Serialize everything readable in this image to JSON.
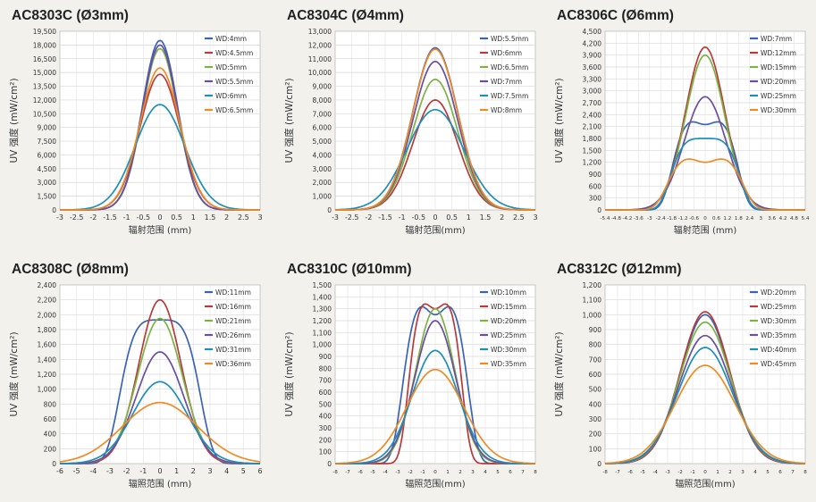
{
  "chart_data": [
    {
      "type": "line",
      "title": "AC8303C (Ø3mm)",
      "xlabel": "辐射范围 (mm)",
      "ylabel": "UV 强度 (mW/cm²)",
      "xlim": [
        -3,
        3
      ],
      "ylim": [
        0,
        19500
      ],
      "xticks": [
        "-3",
        "-2.5",
        "-2",
        "-1.5",
        "-1",
        "-0.5",
        "0",
        "0.5",
        "1",
        "1.5",
        "2",
        "2.5",
        "3"
      ],
      "yticks": [
        "0",
        "1,500",
        "3,000",
        "4,500",
        "6,000",
        "7,500",
        "9,000",
        "10,500",
        "12,000",
        "13,500",
        "15,000",
        "16,500",
        "18,000",
        "19,500"
      ],
      "grid": true,
      "legend": "top-right",
      "series": [
        {
          "name": "WD:4mm",
          "color": "#3a63b8",
          "peak": 18500,
          "width": 0.75,
          "shape": "bell"
        },
        {
          "name": "WD:4.5mm",
          "color": "#b83a3a",
          "peak": 14800,
          "width": 0.85,
          "shape": "bell"
        },
        {
          "name": "WD:5mm",
          "color": "#7cb342",
          "peak": 17600,
          "width": 0.75,
          "shape": "bell"
        },
        {
          "name": "WD:5.5mm",
          "color": "#6a4fa0",
          "peak": 18000,
          "width": 0.75,
          "shape": "bell"
        },
        {
          "name": "WD:6mm",
          "color": "#1e8fb8",
          "peak": 11500,
          "width": 1.05,
          "shape": "bell"
        },
        {
          "name": "WD:6.5mm",
          "color": "#f08a24",
          "peak": 15500,
          "width": 0.85,
          "shape": "bell"
        }
      ]
    },
    {
      "type": "line",
      "title": "AC8304C (Ø4mm)",
      "xlabel": "辐射范围(mm)",
      "ylabel": "UV 强度 (mW/cm²)",
      "xlim": [
        -3,
        3
      ],
      "ylim": [
        0,
        13000
      ],
      "xticks": [
        "-3",
        "-2.5",
        "-2",
        "-1.5",
        "-1",
        "-0.5",
        "0",
        "0.5",
        "1",
        "1.5",
        "2",
        "2.5",
        "3"
      ],
      "yticks": [
        "0",
        "1,000",
        "2,000",
        "3,000",
        "4,000",
        "5,000",
        "6,000",
        "7,000",
        "8,000",
        "9,000",
        "10,000",
        "11,000",
        "12,000",
        "13,000"
      ],
      "grid": true,
      "legend": "top-right",
      "series": [
        {
          "name": "WD:5.5mm",
          "color": "#3a63b8",
          "peak": 11800,
          "width": 0.95,
          "shape": "bell"
        },
        {
          "name": "WD:6mm",
          "color": "#b83a3a",
          "peak": 8000,
          "width": 0.95,
          "shape": "bell"
        },
        {
          "name": "WD:6.5mm",
          "color": "#7cb342",
          "peak": 9500,
          "width": 0.95,
          "shape": "bell"
        },
        {
          "name": "WD:7mm",
          "color": "#6a4fa0",
          "peak": 10800,
          "width": 0.95,
          "shape": "bell"
        },
        {
          "name": "WD:7.5mm",
          "color": "#1e8fb8",
          "peak": 7300,
          "width": 1.2,
          "shape": "bell"
        },
        {
          "name": "WD:8mm",
          "color": "#f08a24",
          "peak": 11700,
          "width": 0.95,
          "shape": "bell"
        }
      ]
    },
    {
      "type": "line",
      "title": "AC8306C (Ø6mm)",
      "xlabel": "辐射范围 (mm)",
      "ylabel": "UV 强度 (mW/cm²)",
      "xlim": [
        -5.4,
        5.4
      ],
      "ylim": [
        0,
        4500
      ],
      "xticks": [
        "-5.4",
        "-4.8",
        "-4.2",
        "-3.6",
        "-3",
        "-2.4",
        "-1.8",
        "-1.2",
        "-0.6",
        "0",
        "0.6",
        "1.2",
        "1.8",
        "2.4",
        "3",
        "3.6",
        "4.2",
        "4.8",
        "5.4"
      ],
      "yticks": [
        "0",
        "300",
        "600",
        "900",
        "1,200",
        "1,500",
        "1,800",
        "2,100",
        "2,400",
        "2,700",
        "3,000",
        "3,300",
        "3,600",
        "3,900",
        "4,200",
        "4,500"
      ],
      "grid": true,
      "legend": "top-right",
      "series": [
        {
          "name": "WD:7mm",
          "color": "#3a63b8",
          "peak": 2300,
          "dip": 2150,
          "width": 1.9,
          "shape": "flat"
        },
        {
          "name": "WD:12mm",
          "color": "#b83a3a",
          "peak": 4100,
          "width": 1.5,
          "shape": "bell"
        },
        {
          "name": "WD:15mm",
          "color": "#7cb342",
          "peak": 3900,
          "width": 1.5,
          "shape": "bell"
        },
        {
          "name": "WD:20mm",
          "color": "#6a4fa0",
          "peak": 2850,
          "width": 1.6,
          "shape": "bell"
        },
        {
          "name": "WD:25mm",
          "color": "#1e8fb8",
          "peak": 1800,
          "width": 2.0,
          "shape": "flat"
        },
        {
          "name": "WD:30mm",
          "color": "#f08a24",
          "peak": 1350,
          "dip": 1200,
          "width": 2.2,
          "shape": "flat"
        }
      ]
    },
    {
      "type": "line",
      "title": "AC8308C (Ø8mm)",
      "xlabel": "辐照范围 (mm)",
      "ylabel": "UV 强度 (mW/cm²)",
      "xlim": [
        -6,
        6
      ],
      "ylim": [
        0,
        2400
      ],
      "xticks": [
        "-6",
        "-5",
        "-4",
        "-3",
        "-2",
        "-1",
        "0",
        "1",
        "2",
        "3",
        "4",
        "5",
        "6"
      ],
      "yticks": [
        "0",
        "200",
        "400",
        "600",
        "800",
        "1,000",
        "1,200",
        "1,400",
        "1,600",
        "1,800",
        "2,000",
        "2,200",
        "2,400"
      ],
      "grid": true,
      "legend": "top-right",
      "series": [
        {
          "name": "WD:11mm",
          "color": "#3a63b8",
          "peak": 1930,
          "width": 2.6,
          "shape": "flat"
        },
        {
          "name": "WD:16mm",
          "color": "#b83a3a",
          "peak": 2200,
          "width": 1.8,
          "shape": "bell"
        },
        {
          "name": "WD:21mm",
          "color": "#7cb342",
          "peak": 1950,
          "width": 1.9,
          "shape": "bell"
        },
        {
          "name": "WD:26mm",
          "color": "#6a4fa0",
          "peak": 1500,
          "width": 2.0,
          "shape": "bell"
        },
        {
          "name": "WD:31mm",
          "color": "#1e8fb8",
          "peak": 1100,
          "width": 2.3,
          "shape": "bell"
        },
        {
          "name": "WD:36mm",
          "color": "#f08a24",
          "peak": 820,
          "width": 3.2,
          "shape": "bell"
        }
      ]
    },
    {
      "type": "line",
      "title": "AC8310C (Ø10mm)",
      "xlabel": "辐照范围(mm)",
      "ylabel": "UV 强度 (mW/cm²)",
      "xlim": [
        -8,
        8
      ],
      "ylim": [
        0,
        1500
      ],
      "xticks": [
        "-8",
        "-7",
        "-6",
        "-5",
        "-4",
        "-3",
        "-2",
        "-1",
        "0",
        "1",
        "2",
        "3",
        "4",
        "5",
        "6",
        "7",
        "8"
      ],
      "yticks": [
        "0",
        "100",
        "200",
        "300",
        "400",
        "500",
        "600",
        "700",
        "800",
        "900",
        "1,000",
        "1,100",
        "1,200",
        "1,300",
        "1,400",
        "1,500"
      ],
      "grid": true,
      "legend": "top-right",
      "series": [
        {
          "name": "WD:10mm",
          "color": "#3a63b8",
          "peak": 1380,
          "dip": 1250,
          "width": 2.8,
          "shape": "flat"
        },
        {
          "name": "WD:15mm",
          "color": "#b83a3a",
          "peak": 1390,
          "dip": 1300,
          "width": 2.3,
          "shape": "flat"
        },
        {
          "name": "WD:20mm",
          "color": "#7cb342",
          "peak": 1300,
          "width": 2.2,
          "shape": "bell"
        },
        {
          "name": "WD:25mm",
          "color": "#6a4fa0",
          "peak": 1200,
          "width": 2.3,
          "shape": "bell"
        },
        {
          "name": "WD:30mm",
          "color": "#1e8fb8",
          "peak": 950,
          "width": 2.6,
          "shape": "bell"
        },
        {
          "name": "WD:35mm",
          "color": "#f08a24",
          "peak": 790,
          "width": 3.2,
          "shape": "bell"
        }
      ]
    },
    {
      "type": "line",
      "title": "AC8312C (Ø12mm)",
      "xlabel": "辐照范围(mm)",
      "ylabel": "UV 强度 (mW/cm²)",
      "xlim": [
        -8,
        8
      ],
      "ylim": [
        0,
        1200
      ],
      "xticks": [
        "-8",
        "-7",
        "-6",
        "-5",
        "-4",
        "-3",
        "-2",
        "-1",
        "0",
        "1",
        "2",
        "3",
        "4",
        "5",
        "6",
        "7",
        "8"
      ],
      "yticks": [
        "0",
        "100",
        "200",
        "300",
        "400",
        "500",
        "600",
        "700",
        "800",
        "900",
        "1,000",
        "1,100",
        "1,200"
      ],
      "grid": true,
      "legend": "top-right",
      "series": [
        {
          "name": "WD:20mm",
          "color": "#3a63b8",
          "peak": 1000,
          "width": 2.8,
          "shape": "bell"
        },
        {
          "name": "WD:25mm",
          "color": "#b83a3a",
          "peak": 1020,
          "width": 2.8,
          "shape": "bell"
        },
        {
          "name": "WD:30mm",
          "color": "#7cb342",
          "peak": 950,
          "width": 2.9,
          "shape": "bell"
        },
        {
          "name": "WD:35mm",
          "color": "#6a4fa0",
          "peak": 860,
          "width": 3.0,
          "shape": "bell"
        },
        {
          "name": "WD:40mm",
          "color": "#1e8fb8",
          "peak": 780,
          "width": 3.1,
          "shape": "bell"
        },
        {
          "name": "WD:45mm",
          "color": "#f08a24",
          "peak": 660,
          "width": 3.4,
          "shape": "bell"
        }
      ]
    }
  ]
}
